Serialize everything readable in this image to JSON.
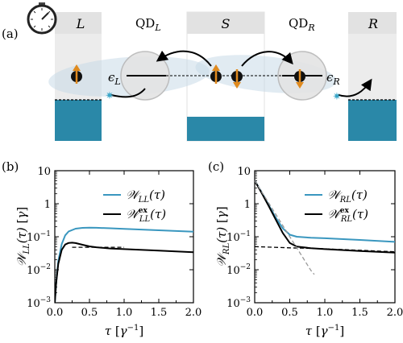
{
  "schematic": {
    "panel_label": "(a)",
    "lead_left": "L",
    "lead_right": "R",
    "dot_left_base": "QD",
    "dot_left_sub": "L",
    "dot_right_base": "QD",
    "dot_right_sub": "R",
    "superconductor": "S",
    "eps_left_base": "ϵ",
    "eps_left_sub": "L",
    "eps_right_base": "ϵ",
    "eps_right_sub": "R",
    "clock_icon": "stopwatch-icon",
    "colors": {
      "lead_fill": "#2a88a8",
      "lead_gray": "#e5e5e5",
      "bubble": "#c9dbe8",
      "spin_arrow": "#e08a1e",
      "photon": "#3aa6c8"
    }
  },
  "chart_data": [
    {
      "panel_label": "(b)",
      "type": "line",
      "xlabel": "τ [γ⁻¹]",
      "ylabel": "𝒲LL(τ) [γ]",
      "xlim": [
        0,
        2
      ],
      "ylim": [
        0.001,
        10
      ],
      "yscale": "log",
      "xticks": [
        "0.0",
        "0.5",
        "1.0",
        "1.5",
        "2.0"
      ],
      "yticks": [
        "10⁻³",
        "10⁻²",
        "10⁻¹",
        "1",
        "10"
      ],
      "legend_position": "upper-right",
      "series": [
        {
          "name": "WLL(τ)",
          "color": "#3a97bf",
          "dash": "solid",
          "x": [
            0,
            0.02,
            0.05,
            0.1,
            0.15,
            0.2,
            0.3,
            0.4,
            0.5,
            0.6,
            0.8,
            1.0,
            1.5,
            2.0
          ],
          "y": [
            0.001,
            0.004,
            0.018,
            0.06,
            0.11,
            0.145,
            0.175,
            0.185,
            0.188,
            0.187,
            0.18,
            0.172,
            0.157,
            0.142
          ]
        },
        {
          "name": "WLL^ex(τ)",
          "color": "#000000",
          "dash": "solid",
          "x": [
            0,
            0.02,
            0.05,
            0.1,
            0.15,
            0.2,
            0.25,
            0.3,
            0.4,
            0.5,
            0.6,
            0.8,
            1.0,
            1.5,
            2.0
          ],
          "y": [
            0.001,
            0.004,
            0.015,
            0.04,
            0.058,
            0.065,
            0.066,
            0.064,
            0.057,
            0.051,
            0.048,
            0.044,
            0.042,
            0.038,
            0.034
          ]
        },
        {
          "name": "",
          "color": "#000000",
          "dash": "dashed",
          "x": [
            0.25,
            0.5,
            1.0
          ],
          "y": [
            0.048,
            0.048,
            0.048
          ]
        }
      ],
      "legend_labels": [
        {
          "base": "𝒲",
          "sub": "LL",
          "sup": "",
          "arg": "(τ)"
        },
        {
          "base": "𝒲",
          "sub": "LL",
          "sup": "ex",
          "arg": "(τ)"
        }
      ]
    },
    {
      "panel_label": "(c)",
      "type": "line",
      "xlabel": "τ [γ⁻¹]",
      "ylabel": "𝒲RL(τ) [γ]",
      "xlim": [
        0,
        2
      ],
      "ylim": [
        0.001,
        10
      ],
      "yscale": "log",
      "xticks": [
        "0.0",
        "0.5",
        "1.0",
        "1.5",
        "2.0"
      ],
      "yticks": [
        "10⁻³",
        "10⁻²",
        "10⁻¹",
        "1",
        "10"
      ],
      "legend_position": "upper-right",
      "series": [
        {
          "name": "WRL(τ)",
          "color": "#3a97bf",
          "dash": "solid",
          "x": [
            0,
            0.1,
            0.2,
            0.3,
            0.4,
            0.5,
            0.6,
            0.8,
            1.0,
            1.5,
            2.0
          ],
          "y": [
            5,
            2.2,
            0.9,
            0.38,
            0.18,
            0.115,
            0.1,
            0.093,
            0.09,
            0.08,
            0.07
          ]
        },
        {
          "name": "WRL^ex(τ)",
          "color": "#000000",
          "dash": "solid",
          "x": [
            0,
            0.1,
            0.2,
            0.3,
            0.4,
            0.5,
            0.6,
            0.8,
            1.0,
            1.5,
            2.0
          ],
          "y": [
            5,
            2.1,
            0.85,
            0.33,
            0.13,
            0.065,
            0.05,
            0.045,
            0.042,
            0.037,
            0.033
          ]
        },
        {
          "name": "",
          "color": "#000000",
          "dash": "dashed",
          "x": [
            0,
            0.5,
            1.0,
            2.0
          ],
          "y": [
            0.05,
            0.046,
            0.043,
            0.035
          ]
        },
        {
          "name": "",
          "color": "#999999",
          "dash": "dashed",
          "x": [
            0,
            0.2,
            0.4,
            0.6,
            0.8,
            0.85
          ],
          "y": [
            5,
            1.05,
            0.22,
            0.046,
            0.0096,
            0.0072
          ]
        }
      ],
      "legend_labels": [
        {
          "base": "𝒲",
          "sub": "RL",
          "sup": "",
          "arg": "(τ)"
        },
        {
          "base": "𝒲",
          "sub": "RL",
          "sup": "ex",
          "arg": "(τ)"
        }
      ]
    }
  ]
}
